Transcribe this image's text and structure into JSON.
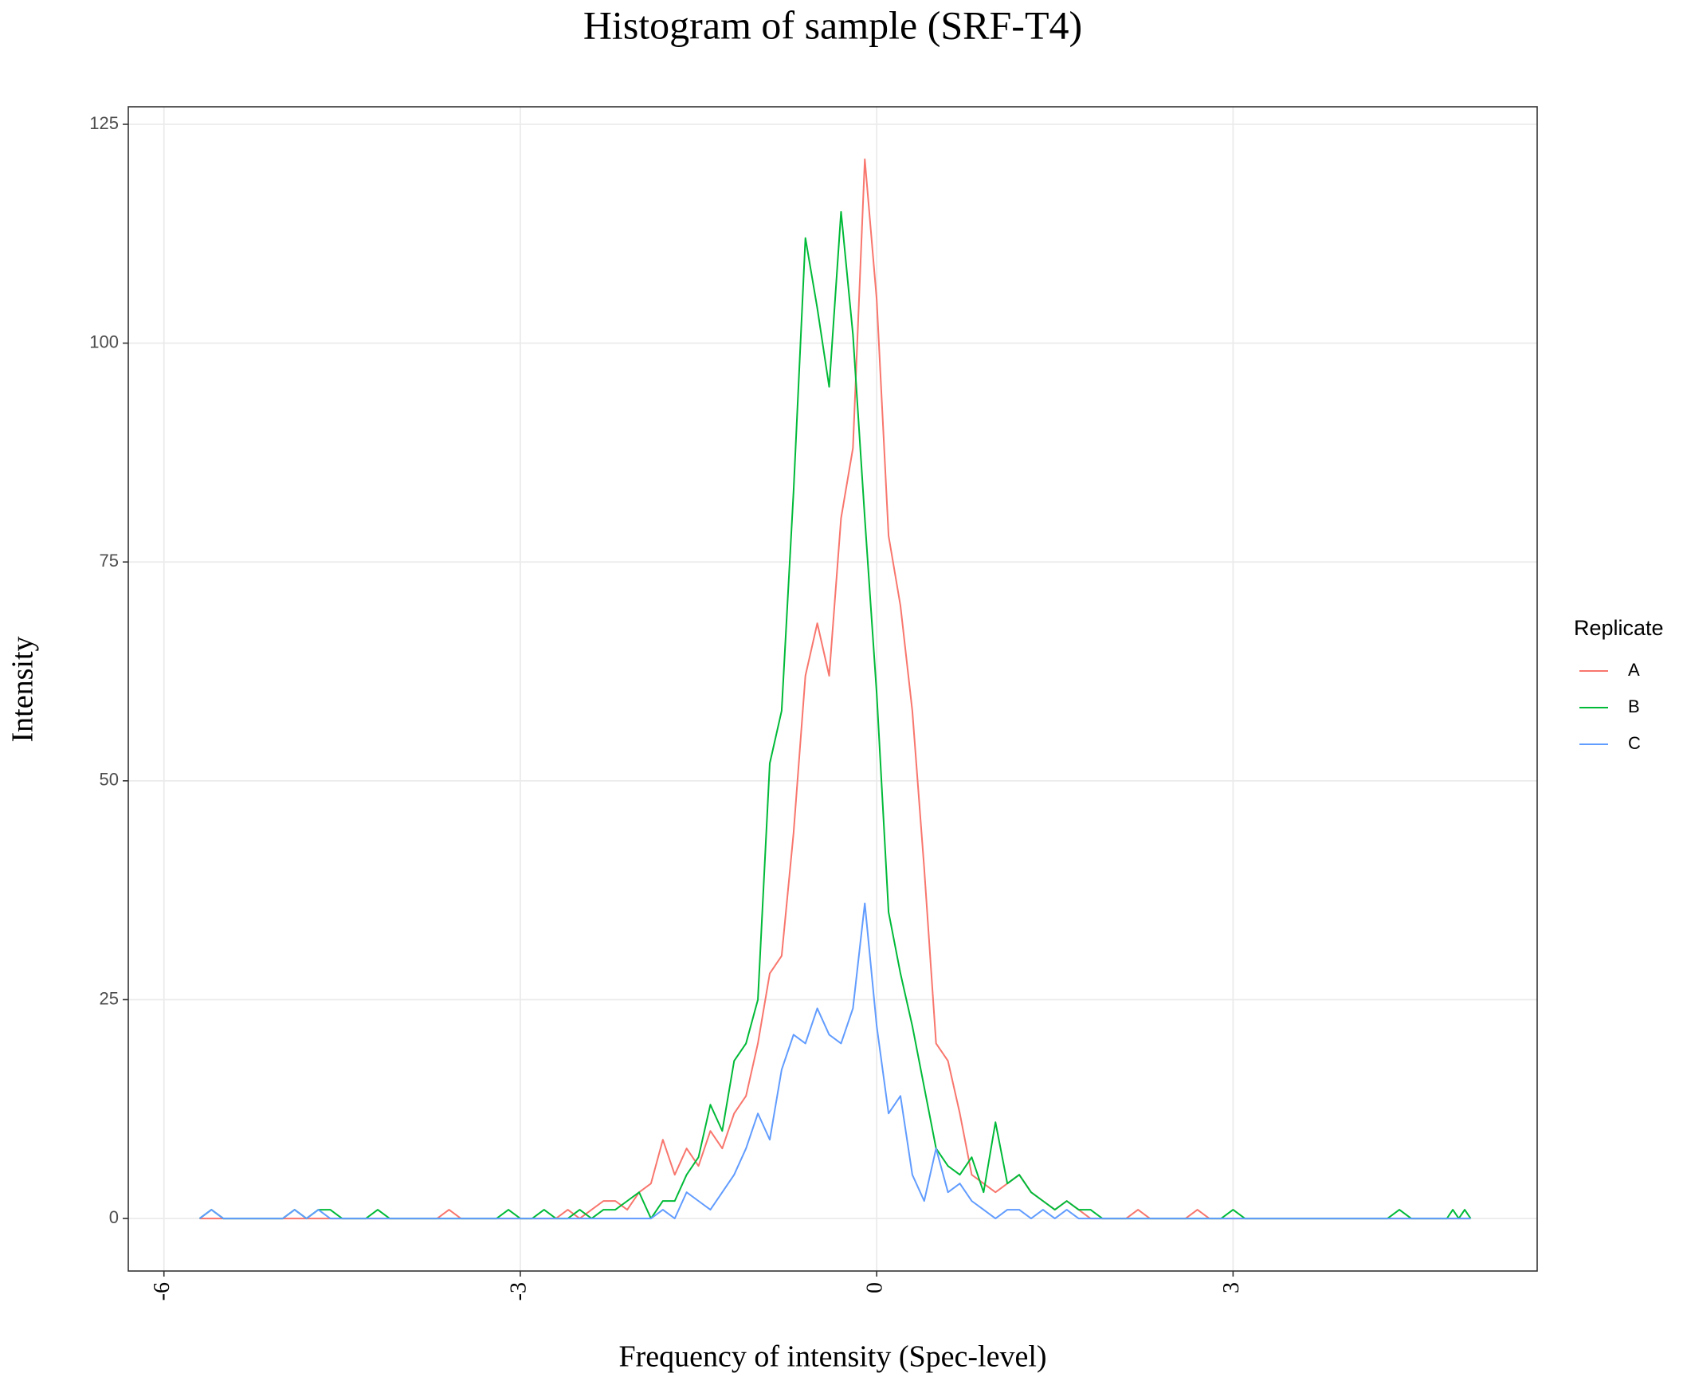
{
  "chart_data": {
    "type": "line",
    "title": "Histogram of sample (SRF-T4)",
    "x_label": "Frequency of intensity (Spec-level)",
    "y_label": "Intensity",
    "legend_title": "Replicate",
    "legend_position": "right",
    "grid": true,
    "xlim": [
      -6.3,
      5.56
    ],
    "ylim": [
      -6,
      127
    ],
    "xticks": [
      -6,
      -3,
      0,
      3
    ],
    "yticks": [
      0,
      25,
      50,
      75,
      100,
      125
    ],
    "x": [
      -5.7,
      -5.6,
      -5.5,
      -5.0,
      -4.9,
      -4.8,
      -4.7,
      -4.6,
      -4.5,
      -4.3,
      -4.2,
      -4.1,
      -3.7,
      -3.6,
      -3.5,
      -3.2,
      -3.1,
      -3.0,
      -2.9,
      -2.8,
      -2.7,
      -2.6,
      -2.5,
      -2.4,
      -2.3,
      -2.2,
      -2.1,
      -2.0,
      -1.9,
      -1.8,
      -1.7,
      -1.6,
      -1.5,
      -1.4,
      -1.3,
      -1.2,
      -1.1,
      -1.0,
      -0.9,
      -0.8,
      -0.7,
      -0.6,
      -0.5,
      -0.4,
      -0.3,
      -0.2,
      -0.1,
      0.0,
      0.1,
      0.2,
      0.3,
      0.4,
      0.5,
      0.6,
      0.7,
      0.8,
      0.9,
      1.0,
      1.1,
      1.2,
      1.3,
      1.4,
      1.5,
      1.6,
      1.7,
      1.8,
      1.9,
      2.0,
      2.1,
      2.2,
      2.3,
      2.6,
      2.7,
      2.8,
      2.9,
      3.0,
      3.1,
      4.3,
      4.4,
      4.5,
      4.8,
      4.85,
      4.9,
      4.95,
      5.0
    ],
    "series": [
      {
        "name": "A",
        "color": "#f8766d",
        "values": [
          0,
          0,
          0,
          0,
          0,
          0,
          0,
          0,
          0,
          0,
          0,
          0,
          0,
          1,
          0,
          0,
          0,
          0,
          0,
          0,
          0,
          1,
          0,
          1,
          2,
          2,
          1,
          3,
          4,
          9,
          5,
          8,
          6,
          10,
          8,
          12,
          14,
          20,
          28,
          30,
          44,
          62,
          68,
          62,
          80,
          88,
          121,
          105,
          78,
          70,
          58,
          40,
          20,
          18,
          12,
          5,
          4,
          3,
          4,
          5,
          3,
          2,
          1,
          2,
          1,
          0,
          0,
          0,
          0,
          1,
          0,
          0,
          1,
          0,
          0,
          0,
          0,
          0,
          0,
          0,
          0,
          0,
          0,
          0,
          0
        ]
      },
      {
        "name": "B",
        "color": "#00ba38",
        "values": [
          0,
          1,
          0,
          0,
          1,
          0,
          1,
          1,
          0,
          0,
          1,
          0,
          0,
          0,
          0,
          0,
          1,
          0,
          0,
          1,
          0,
          0,
          1,
          0,
          1,
          1,
          2,
          3,
          0,
          2,
          2,
          5,
          7,
          13,
          10,
          18,
          20,
          25,
          52,
          58,
          83,
          112,
          104,
          95,
          115,
          101,
          80,
          60,
          35,
          28,
          22,
          15,
          8,
          6,
          5,
          7,
          3,
          11,
          4,
          5,
          3,
          2,
          1,
          2,
          1,
          1,
          0,
          0,
          0,
          0,
          0,
          0,
          0,
          0,
          0,
          1,
          0,
          0,
          1,
          0,
          0,
          1,
          0,
          1,
          0
        ]
      },
      {
        "name": "C",
        "color": "#619cff",
        "values": [
          0,
          1,
          0,
          0,
          1,
          0,
          1,
          0,
          0,
          0,
          0,
          0,
          0,
          0,
          0,
          0,
          0,
          0,
          0,
          0,
          0,
          0,
          0,
          0,
          0,
          0,
          0,
          0,
          0,
          1,
          0,
          3,
          2,
          1,
          3,
          5,
          8,
          12,
          9,
          17,
          21,
          20,
          24,
          21,
          20,
          24,
          36,
          22,
          12,
          14,
          5,
          2,
          8,
          3,
          4,
          2,
          1,
          0,
          1,
          1,
          0,
          1,
          0,
          1,
          0,
          0,
          0,
          0,
          0,
          0,
          0,
          0,
          0,
          0,
          0,
          0,
          0,
          0,
          0,
          0,
          0,
          0,
          0,
          0,
          0
        ]
      }
    ]
  }
}
